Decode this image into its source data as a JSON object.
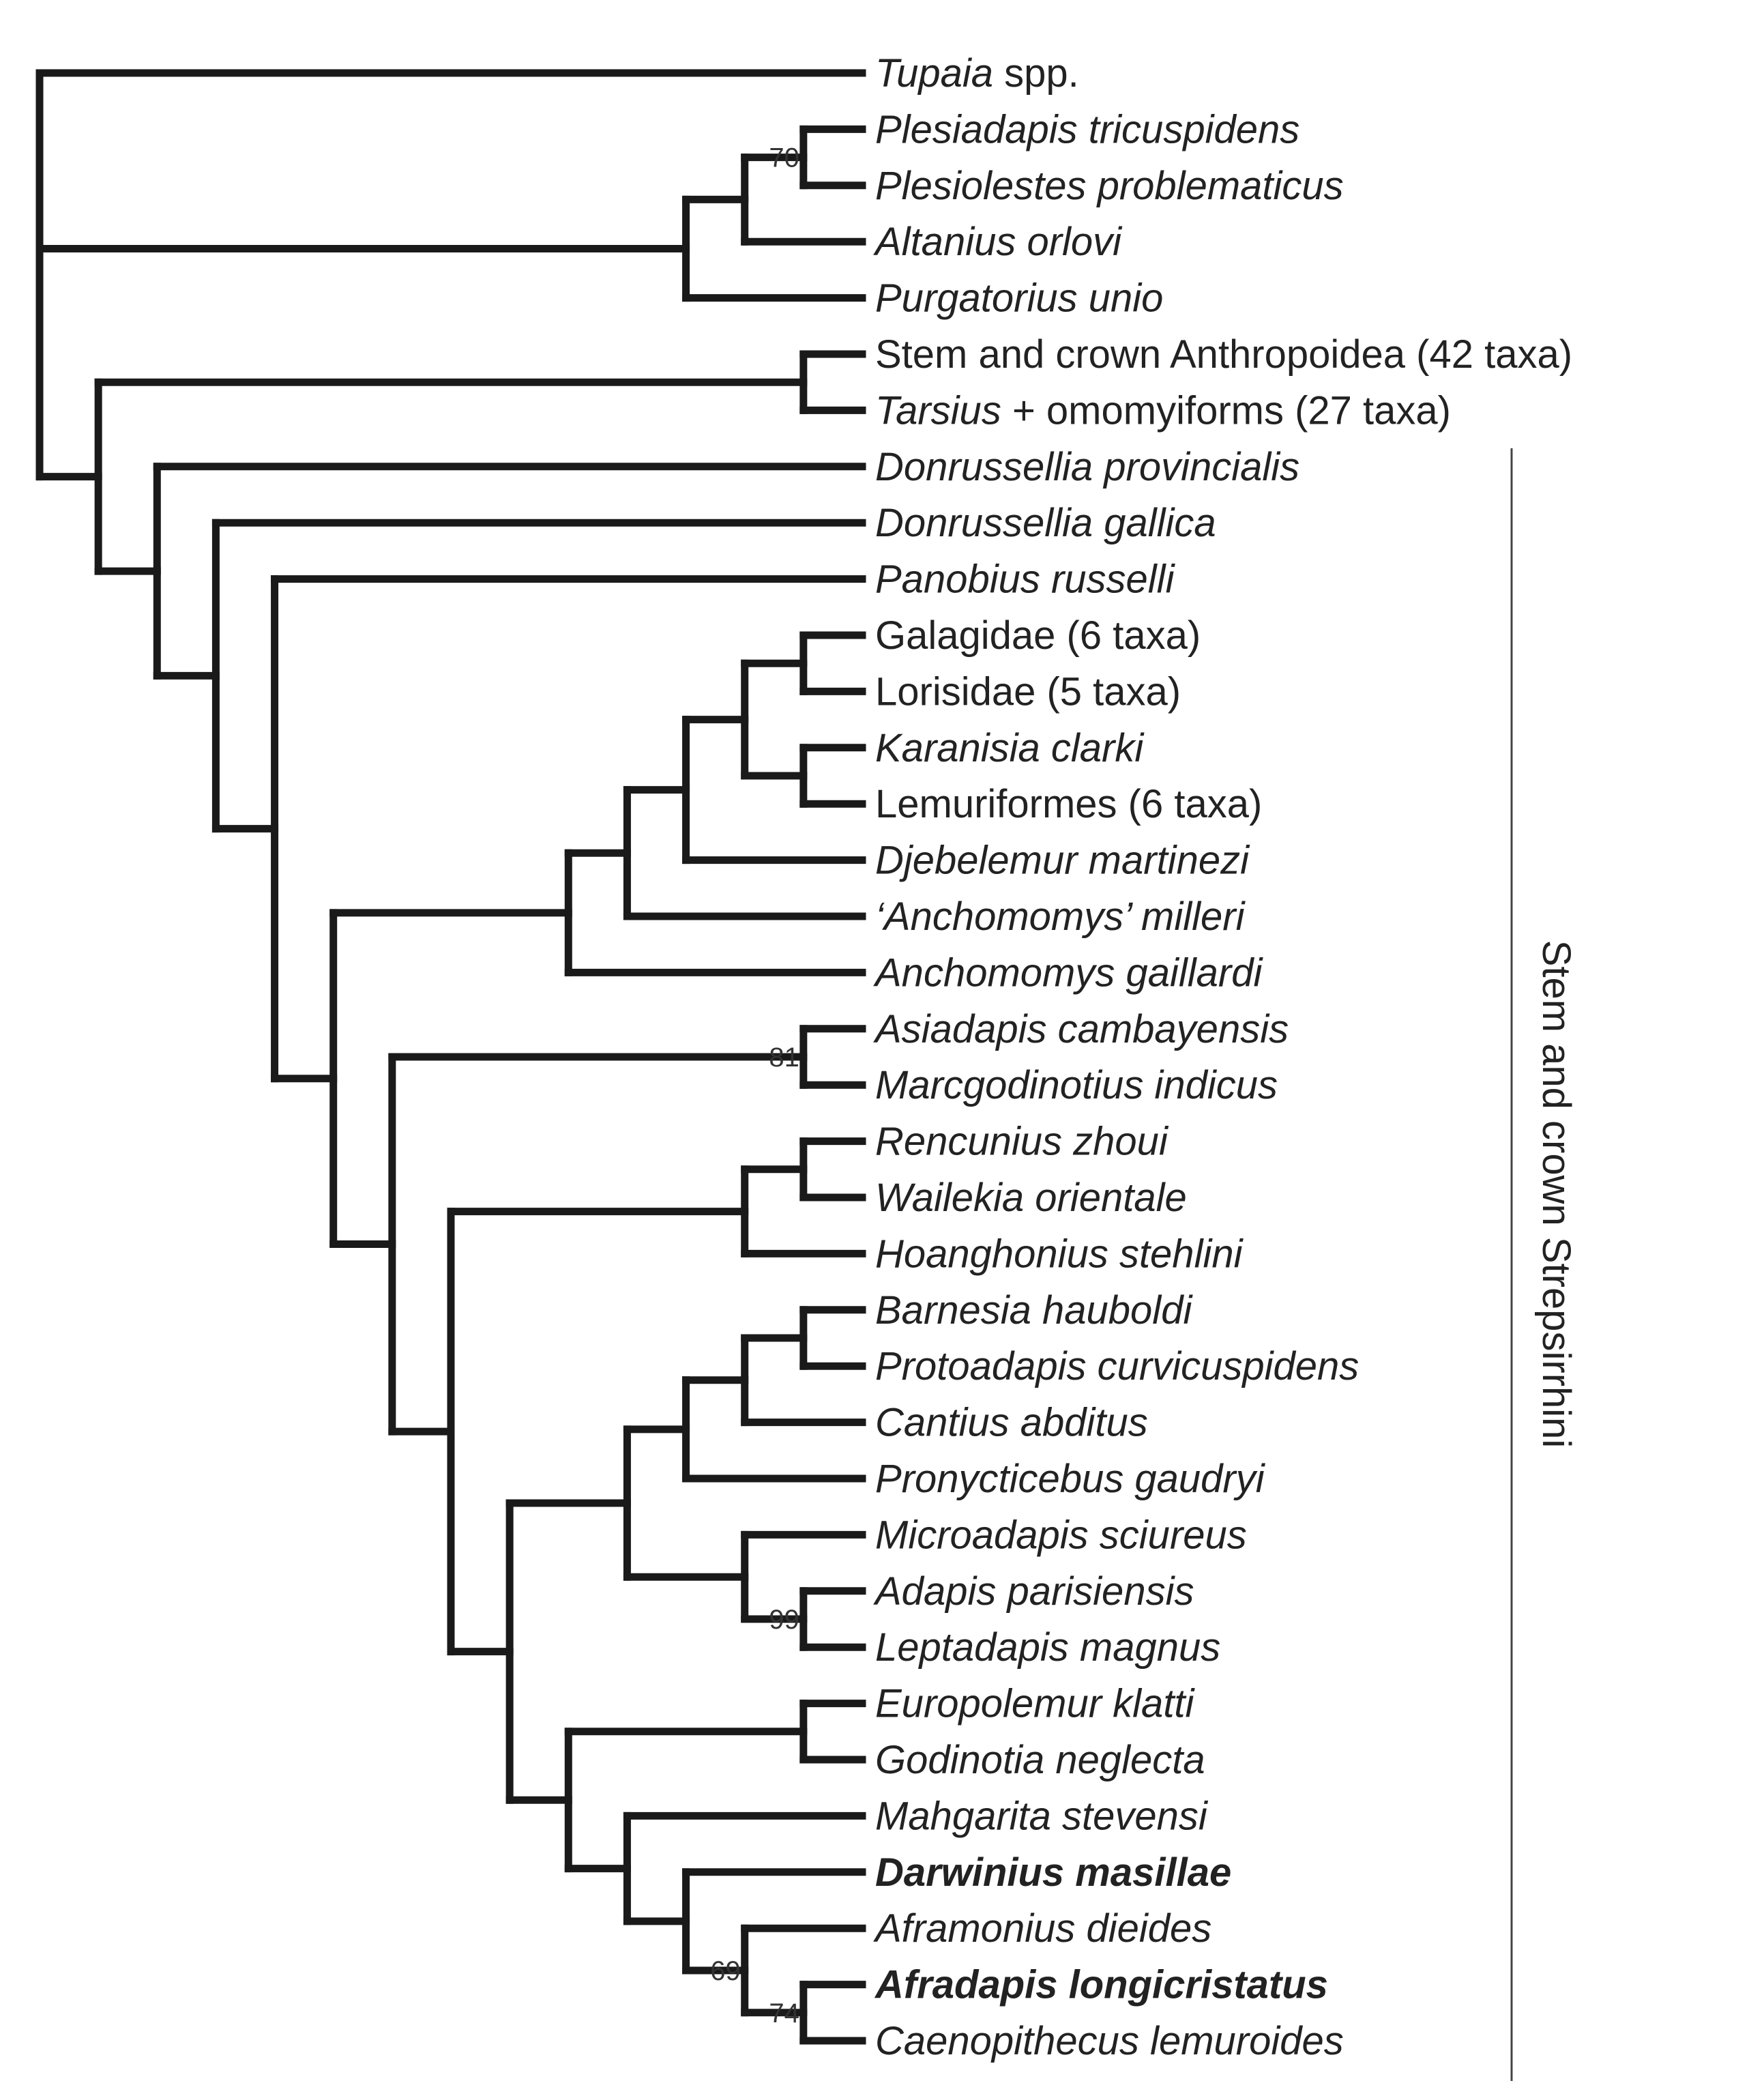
{
  "taxa": [
    {
      "name": "Tupaia",
      "suffix": " spp.",
      "style": "italic"
    },
    {
      "name": "Plesiadapis tricuspidens",
      "suffix": "",
      "style": "italic"
    },
    {
      "name": "Plesiolestes problematicus",
      "suffix": "",
      "style": "italic"
    },
    {
      "name": "Altanius orlovi",
      "suffix": "",
      "style": "italic"
    },
    {
      "name": "Purgatorius unio",
      "suffix": "",
      "style": "italic"
    },
    {
      "name": "",
      "suffix": "Stem and crown Anthropoidea (42 taxa)",
      "style": "roman"
    },
    {
      "name": "Tarsius",
      "suffix": " + omomyiforms (27 taxa)",
      "style": "italic"
    },
    {
      "name": "Donrussellia provincialis",
      "suffix": "",
      "style": "italic"
    },
    {
      "name": "Donrussellia gallica",
      "suffix": "",
      "style": "italic"
    },
    {
      "name": "Panobius russelli",
      "suffix": "",
      "style": "italic"
    },
    {
      "name": "",
      "suffix": "Galagidae (6 taxa)",
      "style": "roman"
    },
    {
      "name": "",
      "suffix": "Lorisidae (5 taxa)",
      "style": "roman"
    },
    {
      "name": "Karanisia clarki",
      "suffix": "",
      "style": "italic"
    },
    {
      "name": "",
      "suffix": "Lemuriformes (6 taxa)",
      "style": "roman"
    },
    {
      "name": "Djebelemur martinezi",
      "suffix": "",
      "style": "italic"
    },
    {
      "name": "‘Anchomomys’ milleri",
      "suffix": "",
      "style": "italic"
    },
    {
      "name": "Anchomomys gaillardi",
      "suffix": "",
      "style": "italic"
    },
    {
      "name": "Asiadapis cambayensis",
      "suffix": "",
      "style": "italic"
    },
    {
      "name": "Marcgodinotius indicus",
      "suffix": "",
      "style": "italic"
    },
    {
      "name": "Rencunius zhoui",
      "suffix": "",
      "style": "italic"
    },
    {
      "name": "Wailekia orientale",
      "suffix": "",
      "style": "italic"
    },
    {
      "name": "Hoanghonius stehlini",
      "suffix": "",
      "style": "italic"
    },
    {
      "name": "Barnesia hauboldi",
      "suffix": "",
      "style": "italic"
    },
    {
      "name": "Protoadapis curvicuspidens",
      "suffix": "",
      "style": "italic"
    },
    {
      "name": "Cantius abditus",
      "suffix": "",
      "style": "italic"
    },
    {
      "name": "Pronycticebus gaudryi",
      "suffix": "",
      "style": "italic"
    },
    {
      "name": "Microadapis sciureus",
      "suffix": "",
      "style": "italic"
    },
    {
      "name": "Adapis parisiensis",
      "suffix": "",
      "style": "italic"
    },
    {
      "name": "Leptadapis magnus",
      "suffix": "",
      "style": "italic"
    },
    {
      "name": "Europolemur klatti",
      "suffix": "",
      "style": "italic"
    },
    {
      "name": "Godinotia neglecta",
      "suffix": "",
      "style": "italic"
    },
    {
      "name": "Mahgarita stevensi",
      "suffix": "",
      "style": "italic"
    },
    {
      "name": "Darwinius masillae",
      "suffix": "",
      "style": "bold-italic"
    },
    {
      "name": "Aframonius dieides",
      "suffix": "",
      "style": "italic"
    },
    {
      "name": "Afradapis longicristatus",
      "suffix": "",
      "style": "bold-italic"
    },
    {
      "name": "Caenopithecus lemuroides",
      "suffix": "",
      "style": "italic"
    }
  ],
  "tree": [
    0,
    [
      [
        {
          "support": "70",
          "children": [
            1,
            2
          ]
        },
        3
      ],
      4
    ],
    [
      [
        5,
        6
      ],
      [
        7,
        [
          8,
          [
            9,
            [
              [
                [
                  [
                    [
                      [
                        10,
                        11
                      ],
                      [
                        12,
                        13
                      ]
                    ],
                    14
                  ],
                  15
                ],
                16
              ],
              [
                {
                  "support": "81",
                  "children": [
                    17,
                    18
                  ]
                },
                [
                  [
                    [
                      19,
                      20
                    ],
                    21
                  ],
                  [
                    [
                      [
                        [
                          [
                            22,
                            23
                          ],
                          24
                        ],
                        25
                      ],
                      [
                        26,
                        {
                          "support": "99",
                          "children": [
                            27,
                            28
                          ]
                        }
                      ]
                    ],
                    [
                      [
                        29,
                        30
                      ],
                      [
                        31,
                        [
                          32,
                          {
                            "support": "69",
                            "children": [
                              33,
                              {
                                "support": "74",
                                "children": [
                                  34,
                                  35
                                ]
                              }
                            ]
                          }
                        ]
                      ]
                    ]
                  ]
                ]
              ]
            ]
          ]
        ]
      ]
    ]
  ],
  "clade_bracket": {
    "label": "Stem and crown Strepsirrhini"
  },
  "colors": {
    "branch": "#1a1a1a",
    "text": "#222222"
  }
}
